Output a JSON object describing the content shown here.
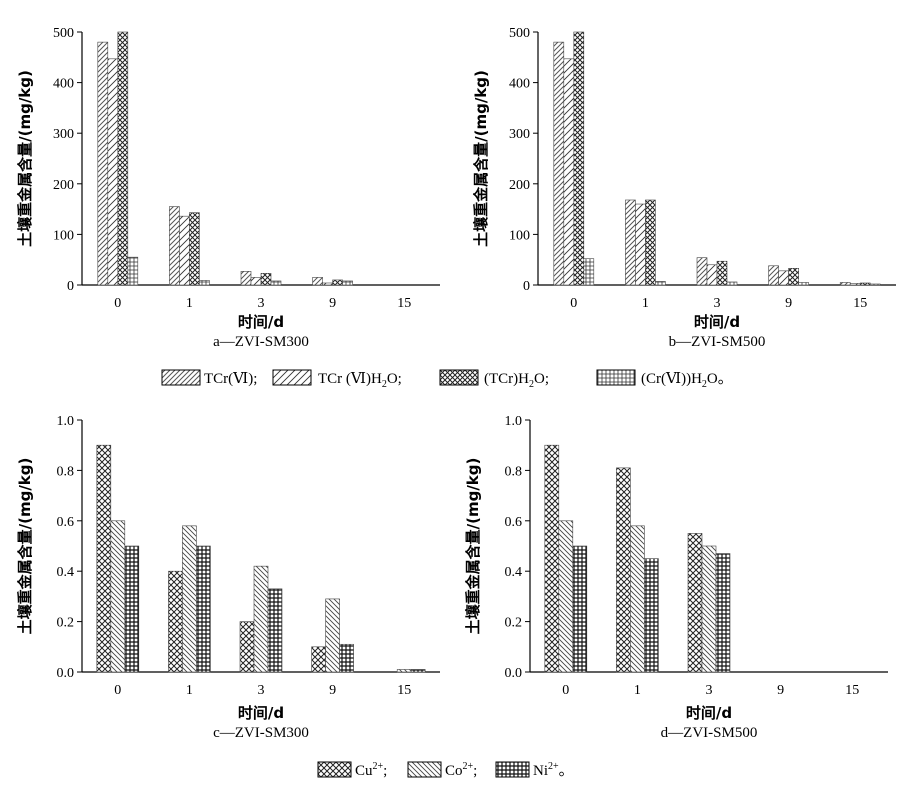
{
  "chart_data": [
    {
      "type": "bar",
      "panel_caption": "a—ZVI-SM300",
      "ylabel": "土壤重金属含量/(mg/kg)",
      "xlabel": "时间/d",
      "categories": [
        "0",
        "1",
        "3",
        "9",
        "15"
      ],
      "ylim": [
        0,
        500
      ],
      "yticks": [
        "0",
        "100",
        "200",
        "300",
        "400",
        "500"
      ],
      "series": [
        {
          "values": [
            480,
            155,
            27,
            15,
            0
          ]
        },
        {
          "values": [
            447,
            136,
            15,
            4,
            0
          ]
        },
        {
          "values": [
            500,
            143,
            23,
            10,
            0
          ]
        },
        {
          "values": [
            55,
            9,
            8,
            8,
            0
          ]
        }
      ]
    },
    {
      "type": "bar",
      "panel_caption": "b—ZVI-SM500",
      "ylabel": "土壤重金属含量/(mg/kg)",
      "xlabel": "时间/d",
      "categories": [
        "0",
        "1",
        "3",
        "9",
        "15"
      ],
      "ylim": [
        0,
        500
      ],
      "yticks": [
        "0",
        "100",
        "200",
        "300",
        "400",
        "500"
      ],
      "series": [
        {
          "values": [
            480,
            168,
            54,
            38,
            5
          ]
        },
        {
          "values": [
            447,
            160,
            40,
            28,
            3
          ]
        },
        {
          "values": [
            500,
            168,
            47,
            33,
            4
          ]
        },
        {
          "values": [
            52,
            7,
            6,
            5,
            2
          ]
        }
      ]
    },
    {
      "type": "bar",
      "panel_caption": "c—ZVI-SM300",
      "ylabel": "土壤重金属含量/(mg/kg)",
      "xlabel": "时间/d",
      "categories": [
        "0",
        "1",
        "3",
        "9",
        "15"
      ],
      "ylim": [
        0,
        1.0
      ],
      "yticks": [
        "0.0",
        "0.2",
        "0.4",
        "0.6",
        "0.8",
        "1.0"
      ],
      "series": [
        {
          "values": [
            0.9,
            0.4,
            0.2,
            0.1,
            0.0
          ]
        },
        {
          "values": [
            0.6,
            0.58,
            0.42,
            0.29,
            0.01
          ]
        },
        {
          "values": [
            0.5,
            0.5,
            0.33,
            0.11,
            0.01
          ]
        }
      ]
    },
    {
      "type": "bar",
      "panel_caption": "d—ZVI-SM500",
      "ylabel": "土壤重金属含量/(mg/kg)",
      "xlabel": "时间/d",
      "categories": [
        "0",
        "1",
        "3",
        "9",
        "15"
      ],
      "ylim": [
        0,
        1.0
      ],
      "yticks": [
        "0.0",
        "0.2",
        "0.4",
        "0.6",
        "0.8",
        "1.0"
      ],
      "series": [
        {
          "values": [
            0.9,
            0.81,
            0.55,
            0,
            0
          ]
        },
        {
          "values": [
            0.6,
            0.58,
            0.5,
            0,
            0
          ]
        },
        {
          "values": [
            0.5,
            0.45,
            0.47,
            0,
            0
          ]
        }
      ]
    }
  ],
  "legend_top": {
    "items": [
      {
        "main": "TCr(Ⅵ);",
        "sub": "",
        "tail": ""
      },
      {
        "main": "TCr (Ⅵ)H",
        "sub": "2",
        "tail": "O;"
      },
      {
        "main": "(TCr)H",
        "sub": "2",
        "tail": "O;"
      },
      {
        "main": "(Cr(Ⅵ))H",
        "sub": "2",
        "tail": "O。"
      }
    ]
  },
  "legend_bottom": {
    "items": [
      {
        "main": "Cu",
        "sup": "2+",
        "tail": ";"
      },
      {
        "main": "Co",
        "sup": "2+",
        "tail": ";"
      },
      {
        "main": "Ni",
        "sup": "2+",
        "tail": "。"
      }
    ]
  }
}
